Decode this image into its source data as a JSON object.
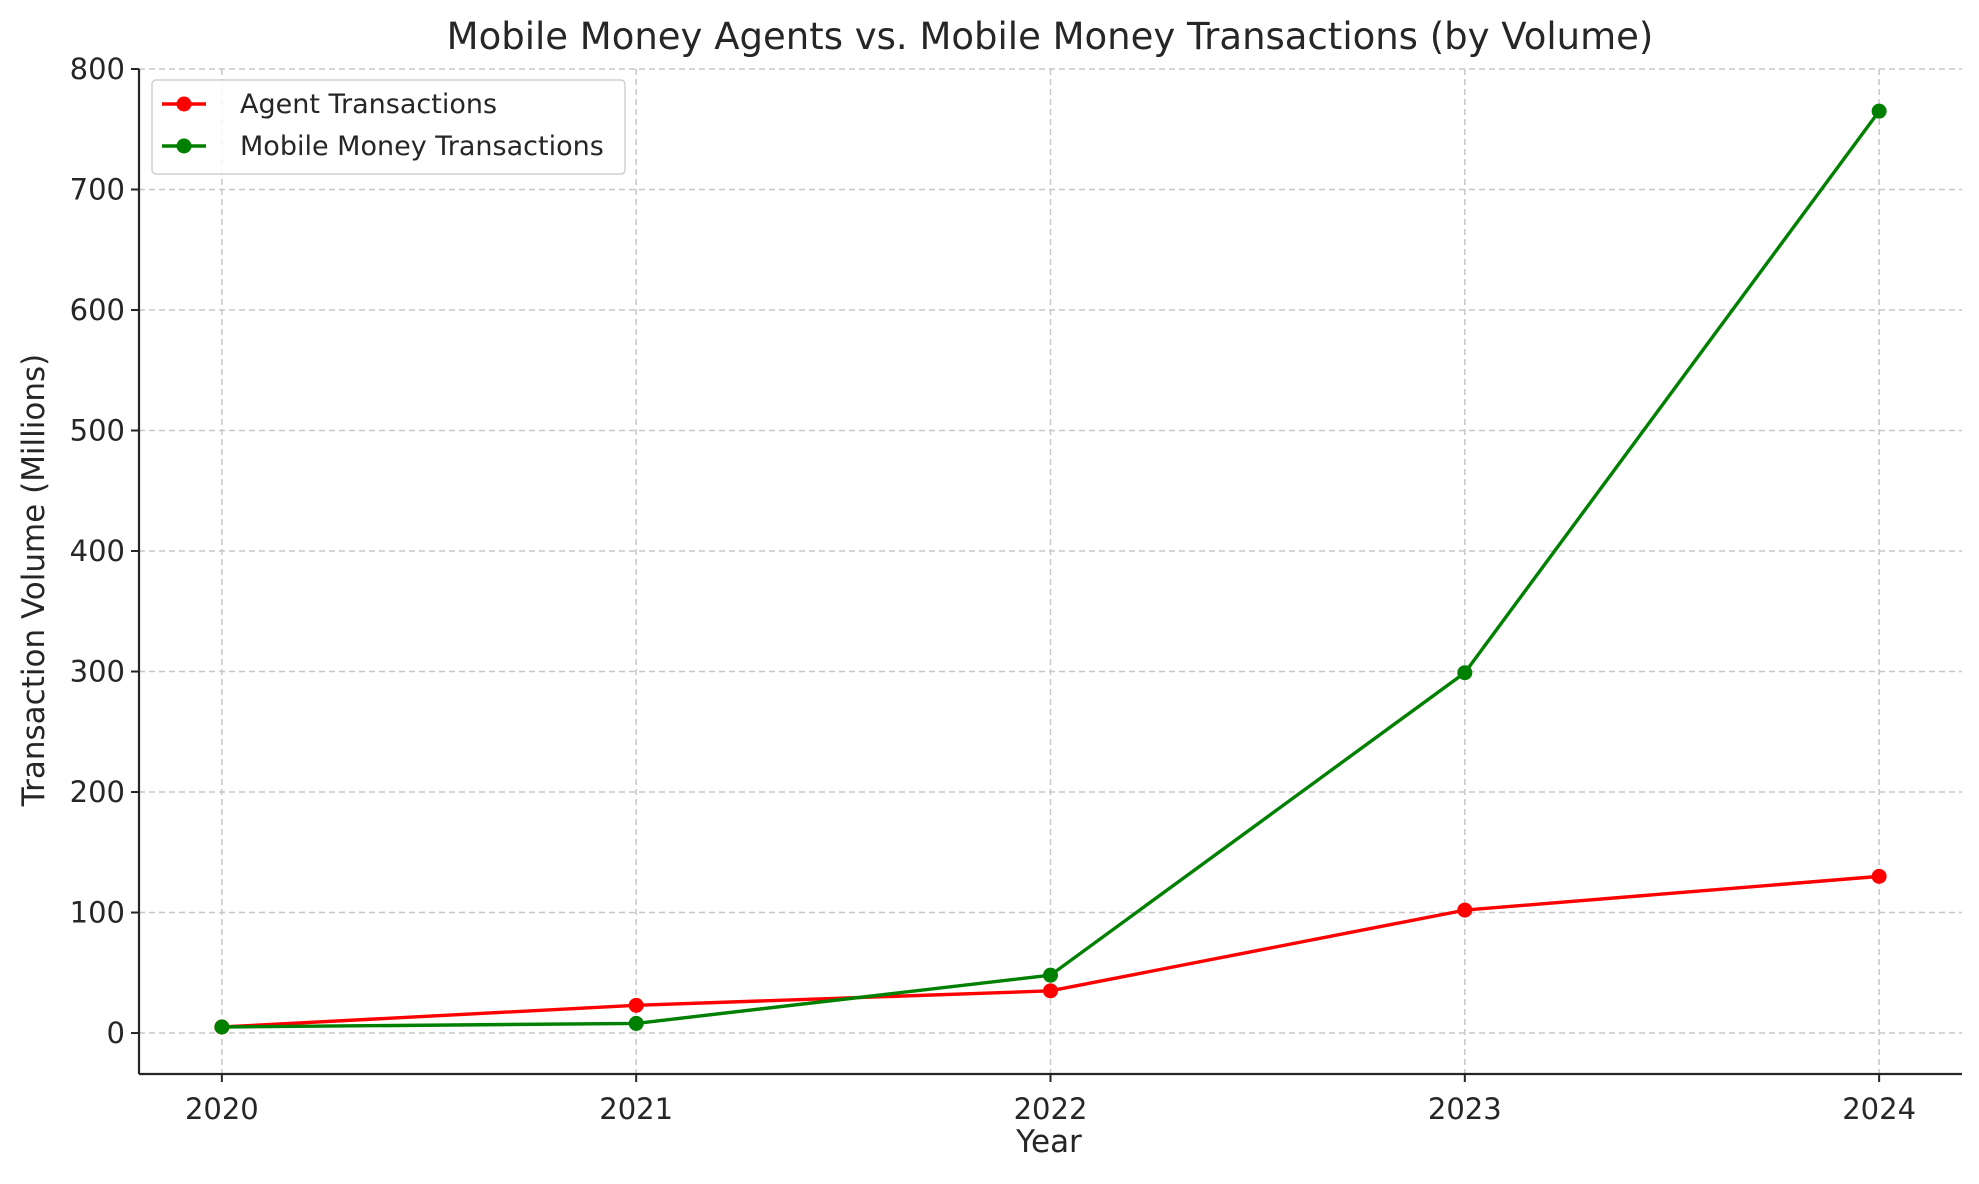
{
  "chart_data": {
    "type": "line",
    "title": "Mobile Money Agents vs. Mobile Money Transactions (by Volume)",
    "xlabel": "Year",
    "ylabel": "Transaction Volume (Millions)",
    "x": [
      2020,
      2021,
      2022,
      2023,
      2024
    ],
    "x_tick_labels": [
      "2020",
      "2021",
      "2022",
      "2023",
      "2024"
    ],
    "xlim": [
      2019.8,
      2024.2
    ],
    "y_ticks": [
      0,
      100,
      200,
      300,
      400,
      500,
      600,
      700,
      800
    ],
    "y_tick_labels": [
      "0",
      "100",
      "200",
      "300",
      "400",
      "500",
      "600",
      "700",
      "800"
    ],
    "ylim": [
      -34,
      800
    ],
    "grid": true,
    "legend_position": "top-left",
    "series": [
      {
        "name": "Agent Transactions",
        "color": "#ff0000",
        "marker": "circle",
        "values": [
          5,
          23,
          35,
          102,
          130
        ]
      },
      {
        "name": "Mobile Money Transactions",
        "color": "#008000",
        "marker": "circle",
        "values": [
          5,
          8,
          48,
          299,
          765
        ]
      }
    ]
  }
}
